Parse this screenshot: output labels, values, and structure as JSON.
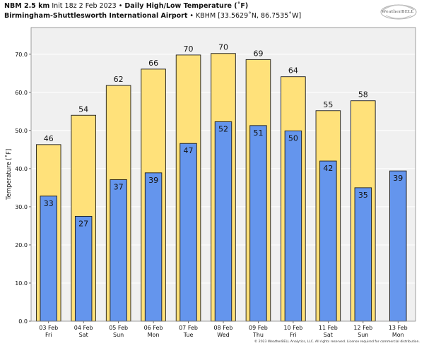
{
  "header": {
    "model": "NBM 2.5 km",
    "init": "Init 18z 2 Feb 2023",
    "bullet": "•",
    "product": "Daily High/Low Temperature (˚F)",
    "station": "Birmingham-Shuttlesworth International Airport",
    "station_meta": "KBHM [33.5629˚N, 86.7535˚W]"
  },
  "logo": {
    "text": "WeatherBELL",
    "color": "#8a8a8a"
  },
  "footer": {
    "text": "© 2023 WeatherBELL Analytics, LLC. All rights reserved. License required for commercial distribution."
  },
  "colors": {
    "high": "#ffe17a",
    "low": "#6495ed",
    "plot_bg": "#f0f0f0",
    "bar_edge": "#1a1a1a",
    "grid": "#ffffff"
  },
  "chart_data": {
    "type": "bar",
    "title": "Daily High/Low Temperature (˚F)",
    "xlabel": "",
    "ylabel": "Temperature [˚F]",
    "ylim": [
      0,
      77
    ],
    "yticks": [
      "0.0",
      "10.0",
      "20.0",
      "30.0",
      "40.0",
      "50.0",
      "60.0",
      "70.0"
    ],
    "categories": [
      [
        "03 Feb",
        "Fri"
      ],
      [
        "04 Feb",
        "Sat"
      ],
      [
        "05 Feb",
        "Sun"
      ],
      [
        "06 Feb",
        "Mon"
      ],
      [
        "07 Feb",
        "Tue"
      ],
      [
        "08 Feb",
        "Wed"
      ],
      [
        "09 Feb",
        "Thu"
      ],
      [
        "10 Feb",
        "Fri"
      ],
      [
        "11 Feb",
        "Sat"
      ],
      [
        "12 Feb",
        "Sun"
      ],
      [
        "13 Feb",
        "Mon"
      ]
    ],
    "series": [
      {
        "values": [
          46.3,
          54,
          61.8,
          66.1,
          69.8,
          70.2,
          68.6,
          64.1,
          55.2,
          57.8,
          null
        ],
        "labels": [
          "46",
          "54",
          "62",
          "66",
          "70",
          "70",
          "69",
          "64",
          "55",
          "58",
          ""
        ]
      },
      {
        "values": [
          32.8,
          27.5,
          37.1,
          38.9,
          46.6,
          52.3,
          51.3,
          49.9,
          42,
          35,
          39.4
        ],
        "labels": [
          "33",
          "27",
          "37",
          "39",
          "47",
          "52",
          "51",
          "50",
          "42",
          "35",
          "39"
        ]
      }
    ],
    "grid": true
  }
}
